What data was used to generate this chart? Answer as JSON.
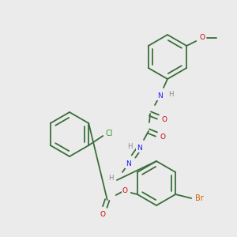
{
  "bg_color": "#ebebeb",
  "bond_color": "#3a6e3a",
  "atom_colors": {
    "O": "#cc0000",
    "N": "#1a1aff",
    "Cl": "#3a9a3a",
    "Br": "#cc6600",
    "H": "#888888",
    "C": "#3a6e3a"
  }
}
